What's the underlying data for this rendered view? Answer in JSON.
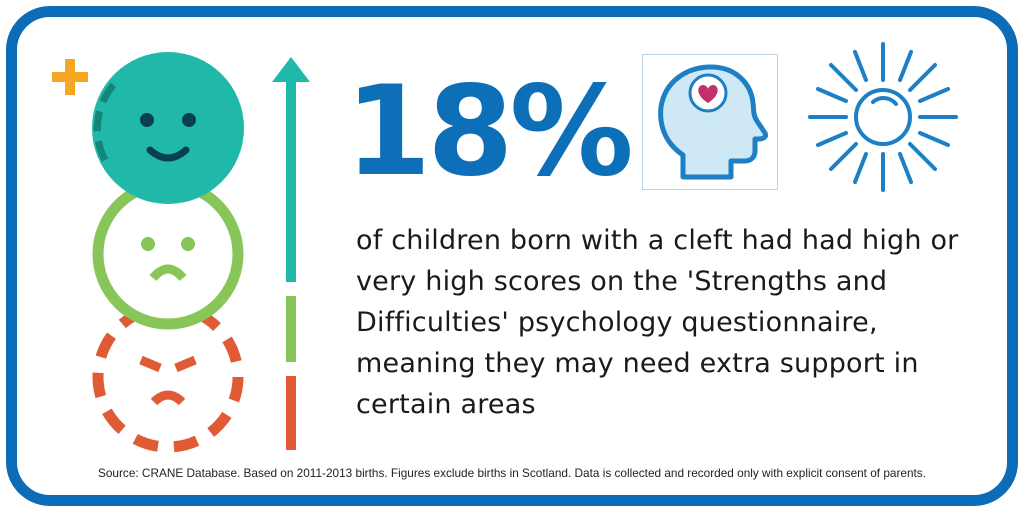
{
  "stat": {
    "value": "18%",
    "description": "of children born with a cleft had had high or very high scores on the 'Strengths and Difficulties' psychology questionnaire, meaning they may need extra support in certain areas"
  },
  "source_note": "Source: CRANE Database. Based on 2011-2013 births. Figures exclude births in Scotland. Data is collected and recorded only with explicit consent of parents.",
  "colors": {
    "frame": "#0c6cb8",
    "stat_text": "#0d6fb7",
    "happy_face": "#20b9a9",
    "sad_face": "#88c65a",
    "angry_face": "#df5a35",
    "plus": "#f5a623",
    "heart": "#c4306c",
    "head_fill": "#cfe8f6",
    "head_stroke": "#1d7fc4",
    "sun": "#1d7fc4"
  },
  "icons": [
    "plus-icon",
    "happy-face-icon",
    "sad-face-icon",
    "angry-face-icon",
    "scale-arrow-icon",
    "head-heart-icon",
    "sun-icon"
  ]
}
